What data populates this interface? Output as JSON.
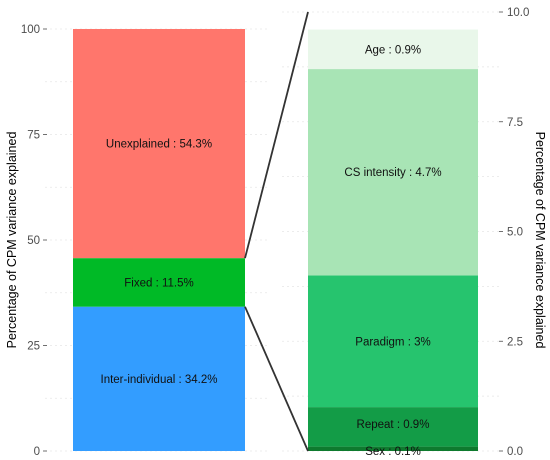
{
  "chart_data": [
    {
      "type": "bar",
      "stacked": true,
      "ylabel": "Percentage of CPM variance explained",
      "ylim": [
        0,
        100
      ],
      "yticks": [
        0,
        25,
        50,
        75,
        100
      ],
      "grid": true,
      "segments": [
        {
          "label": "Inter-individual : 34.2%",
          "value": 34.2,
          "color": "#339DFF"
        },
        {
          "label": "Fixed : 11.5%",
          "value": 11.5,
          "color": "#00BA26"
        },
        {
          "label": "Unexplained : 54.3%",
          "value": 54.3,
          "color": "#FF766C"
        }
      ]
    },
    {
      "type": "bar",
      "stacked": true,
      "ylabel": "Percentage of CPM variance explained",
      "ylim": [
        0,
        10
      ],
      "yticks": [
        "0.0",
        "2.5",
        "5.0",
        "7.5",
        "10.0"
      ],
      "grid": true,
      "segments": [
        {
          "label": "Sex : 0.1%",
          "value": 0.1,
          "color": "#0E7A2E"
        },
        {
          "label": "Repeat : 0.9%",
          "value": 0.9,
          "color": "#139C47"
        },
        {
          "label": "Paradigm : 3%",
          "value": 3.0,
          "color": "#26C46E"
        },
        {
          "label": "CS intensity : 4.7%",
          "value": 4.7,
          "color": "#A8E4B5"
        },
        {
          "label": "Age : 0.9%",
          "value": 0.9,
          "color": "#E9F7EA"
        }
      ]
    }
  ]
}
